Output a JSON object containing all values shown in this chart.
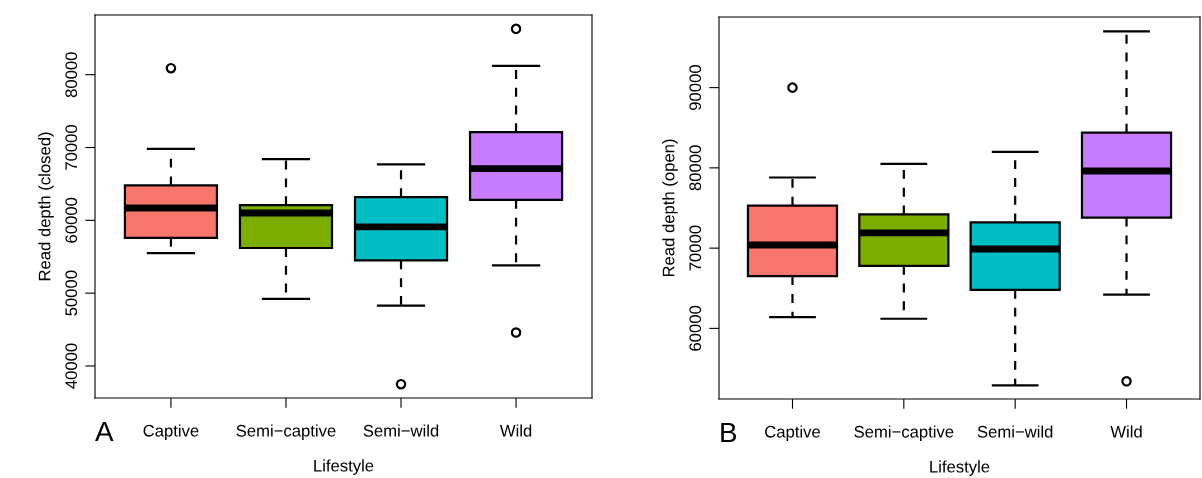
{
  "chart_data": [
    {
      "type": "box",
      "xlabel": "Lifestyle",
      "ylabel": "Read depth (closed)",
      "annotations": [
        "A"
      ],
      "categories": [
        "Captive",
        "Semi−captive",
        "Semi−wild",
        "Wild"
      ],
      "colors": [
        "#f8766d",
        "#7cae00",
        "#00bfc4",
        "#c77cff"
      ],
      "ylim": [
        35600,
        88200
      ],
      "yticks": [
        40000,
        50000,
        60000,
        70000,
        80000
      ],
      "boxes": [
        {
          "low": 55500,
          "q1": 57600,
          "median": 61700,
          "q3": 64800,
          "high": 69800,
          "outliers": [
            80900
          ]
        },
        {
          "low": 49200,
          "q1": 56200,
          "median": 61000,
          "q3": 62100,
          "high": 68400
        },
        {
          "low": 48300,
          "q1": 54500,
          "median": 59100,
          "q3": 63200,
          "high": 67700,
          "outliers": [
            37500
          ]
        },
        {
          "low": 53800,
          "q1": 62800,
          "median": 67100,
          "q3": 72100,
          "high": 81200,
          "outliers": [
            86300,
            44600
          ]
        }
      ]
    },
    {
      "type": "box",
      "xlabel": "Lifestyle",
      "ylabel": "Read depth (open)",
      "annotations": [
        "B"
      ],
      "categories": [
        "Captive",
        "Semi−captive",
        "Semi−wild",
        "Wild"
      ],
      "colors": [
        "#f8766d",
        "#7cae00",
        "#00bfc4",
        "#c77cff"
      ],
      "ylim": [
        51200,
        98800
      ],
      "yticks": [
        60000,
        70000,
        80000,
        90000
      ],
      "boxes": [
        {
          "low": 61400,
          "q1": 66500,
          "median": 70400,
          "q3": 75300,
          "high": 78800,
          "outliers": [
            90000
          ]
        },
        {
          "low": 61200,
          "q1": 67800,
          "median": 71900,
          "q3": 74200,
          "high": 80500
        },
        {
          "low": 52900,
          "q1": 64800,
          "median": 69900,
          "q3": 73200,
          "high": 82000
        },
        {
          "low": 64200,
          "q1": 73800,
          "median": 79600,
          "q3": 84400,
          "high": 97000,
          "outliers": [
            53400
          ]
        }
      ]
    }
  ]
}
